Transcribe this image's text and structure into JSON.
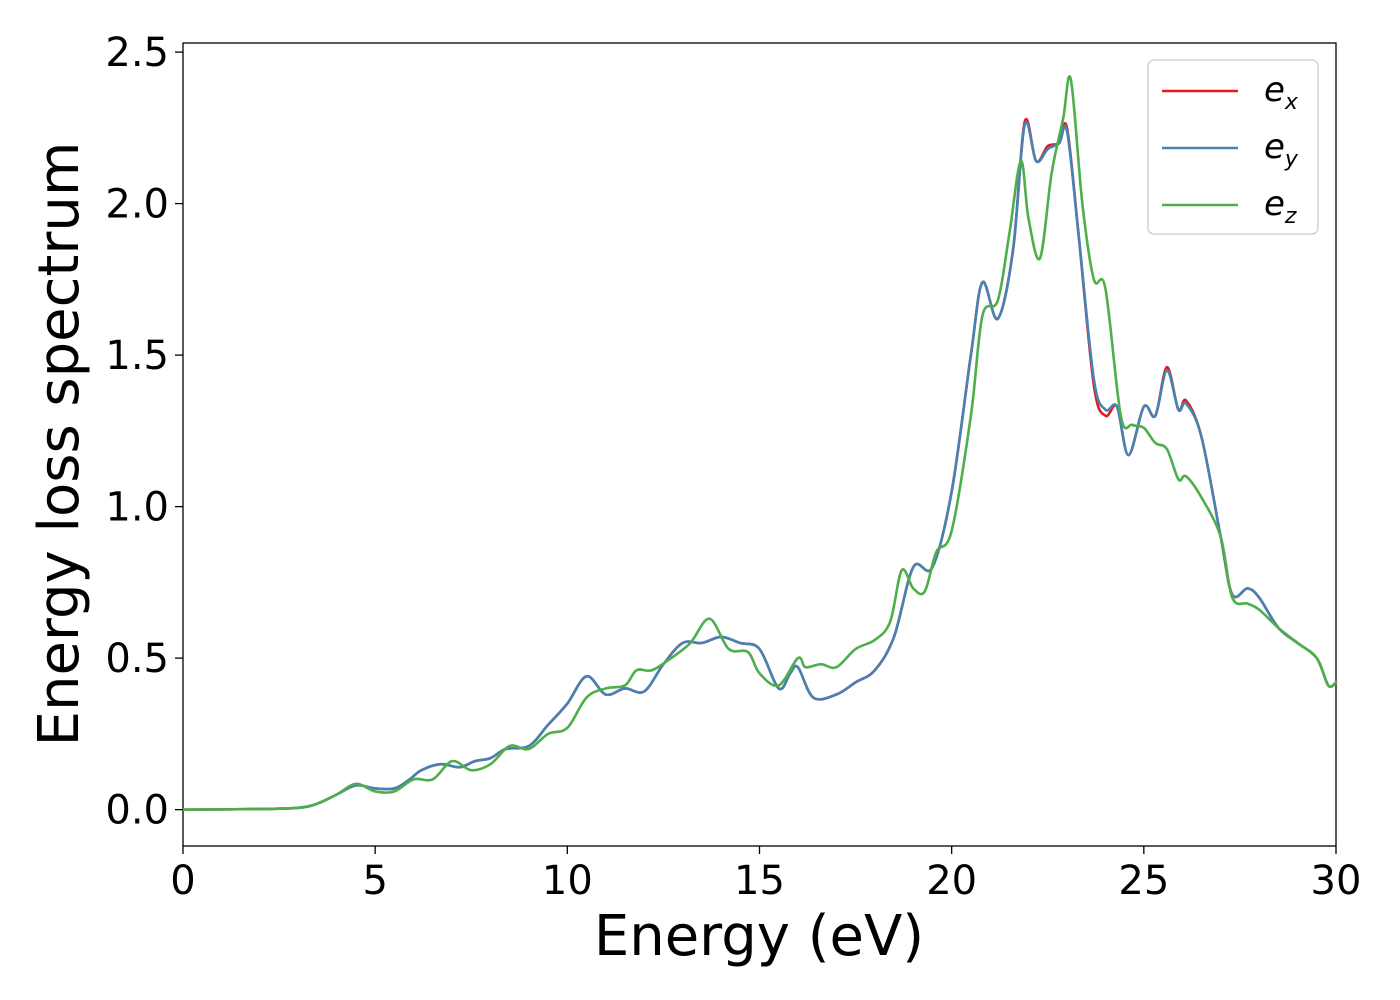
{
  "chart_data": {
    "type": "line",
    "title": "",
    "xlabel": "Energy (eV)",
    "ylabel": "Energy loss spectrum",
    "xlim": [
      0,
      30
    ],
    "ylim": [
      -0.12,
      2.53
    ],
    "xticks": [
      0,
      5,
      10,
      15,
      20,
      25,
      30
    ],
    "xtick_labels": [
      "0",
      "5",
      "10",
      "15",
      "20",
      "25",
      "30"
    ],
    "yticks": [
      0.0,
      0.5,
      1.0,
      1.5,
      2.0,
      2.5
    ],
    "ytick_labels": [
      "0.0",
      "0.5",
      "1.0",
      "1.5",
      "2.0",
      "2.5"
    ],
    "grid": false,
    "legend_position": "top-right",
    "series": [
      {
        "name": "e_x",
        "legend_base": "e",
        "legend_sub": "x",
        "color": "#e41a1c",
        "x": [
          0,
          2,
          3,
          3.5,
          4.0,
          4.5,
          5.0,
          5.5,
          5.9,
          6.2,
          6.7,
          7.2,
          7.6,
          8.0,
          8.4,
          9.0,
          9.5,
          10.0,
          10.5,
          11.0,
          11.5,
          12.0,
          12.5,
          13.0,
          13.5,
          14.0,
          14.5,
          15.0,
          15.5,
          15.8,
          16.0,
          16.4,
          17.0,
          17.5,
          18.0,
          18.5,
          19.0,
          19.5,
          20.0,
          20.5,
          20.8,
          21.2,
          21.6,
          21.9,
          22.2,
          22.5,
          22.8,
          23.0,
          23.3,
          23.7,
          24.0,
          24.3,
          24.6,
          25.0,
          25.3,
          25.6,
          25.9,
          26.1,
          26.5,
          27.0,
          27.3,
          27.7,
          28.0,
          28.5,
          29.0,
          29.5,
          29.8,
          30.0
        ],
        "y": [
          0.0,
          0.002,
          0.006,
          0.02,
          0.05,
          0.08,
          0.07,
          0.07,
          0.1,
          0.13,
          0.15,
          0.14,
          0.16,
          0.17,
          0.2,
          0.21,
          0.28,
          0.35,
          0.44,
          0.38,
          0.4,
          0.39,
          0.48,
          0.55,
          0.55,
          0.57,
          0.55,
          0.53,
          0.4,
          0.45,
          0.47,
          0.37,
          0.38,
          0.42,
          0.46,
          0.57,
          0.8,
          0.8,
          1.05,
          1.5,
          1.74,
          1.62,
          1.85,
          2.27,
          2.14,
          2.19,
          2.2,
          2.25,
          1.9,
          1.4,
          1.3,
          1.33,
          1.17,
          1.33,
          1.3,
          1.46,
          1.32,
          1.35,
          1.23,
          0.9,
          0.71,
          0.73,
          0.7,
          0.6,
          0.55,
          0.5,
          0.41,
          0.42
        ]
      },
      {
        "name": "e_y",
        "legend_base": "e",
        "legend_sub": "y",
        "color": "#4682b4",
        "x": [
          0,
          2,
          3,
          3.5,
          4.0,
          4.5,
          5.0,
          5.5,
          5.9,
          6.2,
          6.7,
          7.2,
          7.6,
          8.0,
          8.4,
          9.0,
          9.5,
          10.0,
          10.5,
          11.0,
          11.5,
          12.0,
          12.5,
          13.0,
          13.5,
          14.0,
          14.5,
          15.0,
          15.5,
          15.8,
          16.0,
          16.4,
          17.0,
          17.5,
          18.0,
          18.5,
          19.0,
          19.5,
          20.0,
          20.5,
          20.8,
          21.2,
          21.6,
          21.9,
          22.2,
          22.5,
          22.8,
          23.0,
          23.3,
          23.7,
          24.0,
          24.3,
          24.6,
          25.0,
          25.3,
          25.6,
          25.9,
          26.1,
          26.5,
          27.0,
          27.3,
          27.7,
          28.0,
          28.5,
          29.0,
          29.5,
          29.8,
          30.0
        ],
        "y": [
          0.0,
          0.002,
          0.006,
          0.02,
          0.05,
          0.08,
          0.07,
          0.07,
          0.1,
          0.13,
          0.15,
          0.14,
          0.16,
          0.17,
          0.2,
          0.21,
          0.28,
          0.35,
          0.44,
          0.38,
          0.4,
          0.39,
          0.48,
          0.55,
          0.55,
          0.57,
          0.55,
          0.53,
          0.4,
          0.45,
          0.47,
          0.37,
          0.38,
          0.42,
          0.46,
          0.57,
          0.8,
          0.8,
          1.05,
          1.5,
          1.74,
          1.62,
          1.85,
          2.26,
          2.14,
          2.18,
          2.2,
          2.24,
          1.9,
          1.42,
          1.32,
          1.33,
          1.17,
          1.33,
          1.3,
          1.45,
          1.32,
          1.34,
          1.23,
          0.9,
          0.71,
          0.73,
          0.7,
          0.6,
          0.55,
          0.5,
          0.41,
          0.42
        ]
      },
      {
        "name": "e_z",
        "legend_base": "e",
        "legend_sub": "z",
        "color": "#4daf4a",
        "x": [
          0,
          2,
          3,
          3.5,
          4.0,
          4.5,
          5.0,
          5.5,
          6.0,
          6.5,
          7.0,
          7.5,
          8.0,
          8.5,
          9.0,
          9.5,
          10.0,
          10.5,
          11.0,
          11.5,
          11.8,
          12.2,
          12.7,
          13.2,
          13.7,
          14.2,
          14.7,
          15.0,
          15.5,
          16.0,
          16.2,
          16.6,
          17.0,
          17.5,
          18.0,
          18.4,
          18.7,
          19.0,
          19.3,
          19.6,
          20.0,
          20.5,
          20.8,
          21.2,
          21.5,
          21.8,
          22.0,
          22.3,
          22.6,
          22.9,
          23.1,
          23.4,
          23.7,
          24.0,
          24.4,
          24.7,
          25.0,
          25.3,
          25.6,
          25.9,
          26.1,
          26.5,
          27.0,
          27.3,
          27.7,
          28.0,
          28.5,
          29.0,
          29.5,
          29.8,
          30.0
        ],
        "y": [
          0.0,
          0.002,
          0.006,
          0.02,
          0.05,
          0.085,
          0.06,
          0.06,
          0.1,
          0.1,
          0.16,
          0.13,
          0.15,
          0.21,
          0.2,
          0.25,
          0.27,
          0.37,
          0.4,
          0.41,
          0.46,
          0.46,
          0.5,
          0.55,
          0.63,
          0.53,
          0.52,
          0.45,
          0.41,
          0.5,
          0.47,
          0.48,
          0.47,
          0.53,
          0.56,
          0.62,
          0.79,
          0.73,
          0.72,
          0.85,
          0.92,
          1.3,
          1.63,
          1.68,
          1.9,
          2.14,
          1.95,
          1.82,
          2.1,
          2.28,
          2.41,
          2.0,
          1.75,
          1.72,
          1.3,
          1.27,
          1.26,
          1.21,
          1.19,
          1.09,
          1.1,
          1.03,
          0.9,
          0.7,
          0.68,
          0.66,
          0.6,
          0.55,
          0.5,
          0.41,
          0.42
        ]
      }
    ]
  }
}
